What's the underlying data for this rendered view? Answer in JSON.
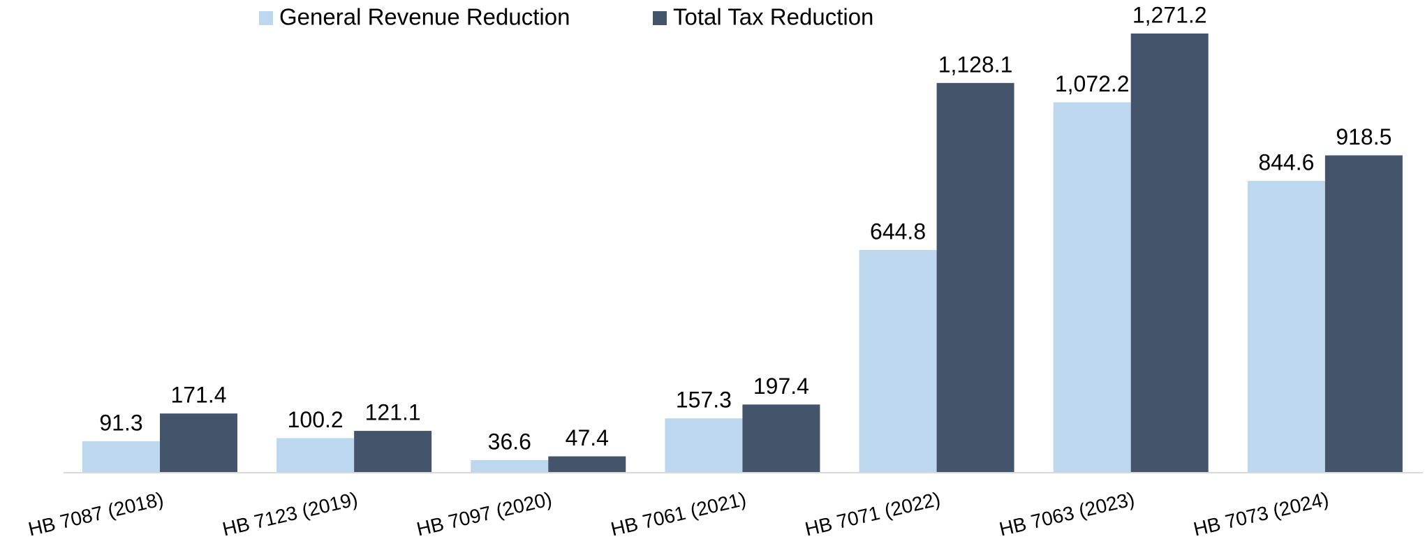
{
  "chart_data": {
    "type": "bar",
    "categories": [
      "HB 7087 (2018)",
      "HB 7123 (2019)",
      "HB 7097 (2020)",
      "HB 7061 (2021)",
      "HB 7071 (2022)",
      "HB 7063 (2023)",
      "HB 7073 (2024)"
    ],
    "series": [
      {
        "name": "General Revenue Reduction",
        "color": "#bdd7ee",
        "values": [
          91.3,
          100.2,
          36.6,
          157.3,
          644.8,
          1072.2,
          844.6
        ],
        "value_labels": [
          "91.3",
          "100.2",
          "36.6",
          "157.3",
          "644.8",
          "1,072.2",
          "844.6"
        ]
      },
      {
        "name": "Total Tax Reduction",
        "color": "#44546a",
        "values": [
          171.4,
          121.1,
          47.4,
          197.4,
          1128.1,
          1271.2,
          918.5
        ],
        "value_labels": [
          "171.4",
          "121.1",
          "47.4",
          "197.4",
          "1,128.1",
          "1,271.2",
          "918.5"
        ]
      }
    ],
    "legend": "top"
  }
}
